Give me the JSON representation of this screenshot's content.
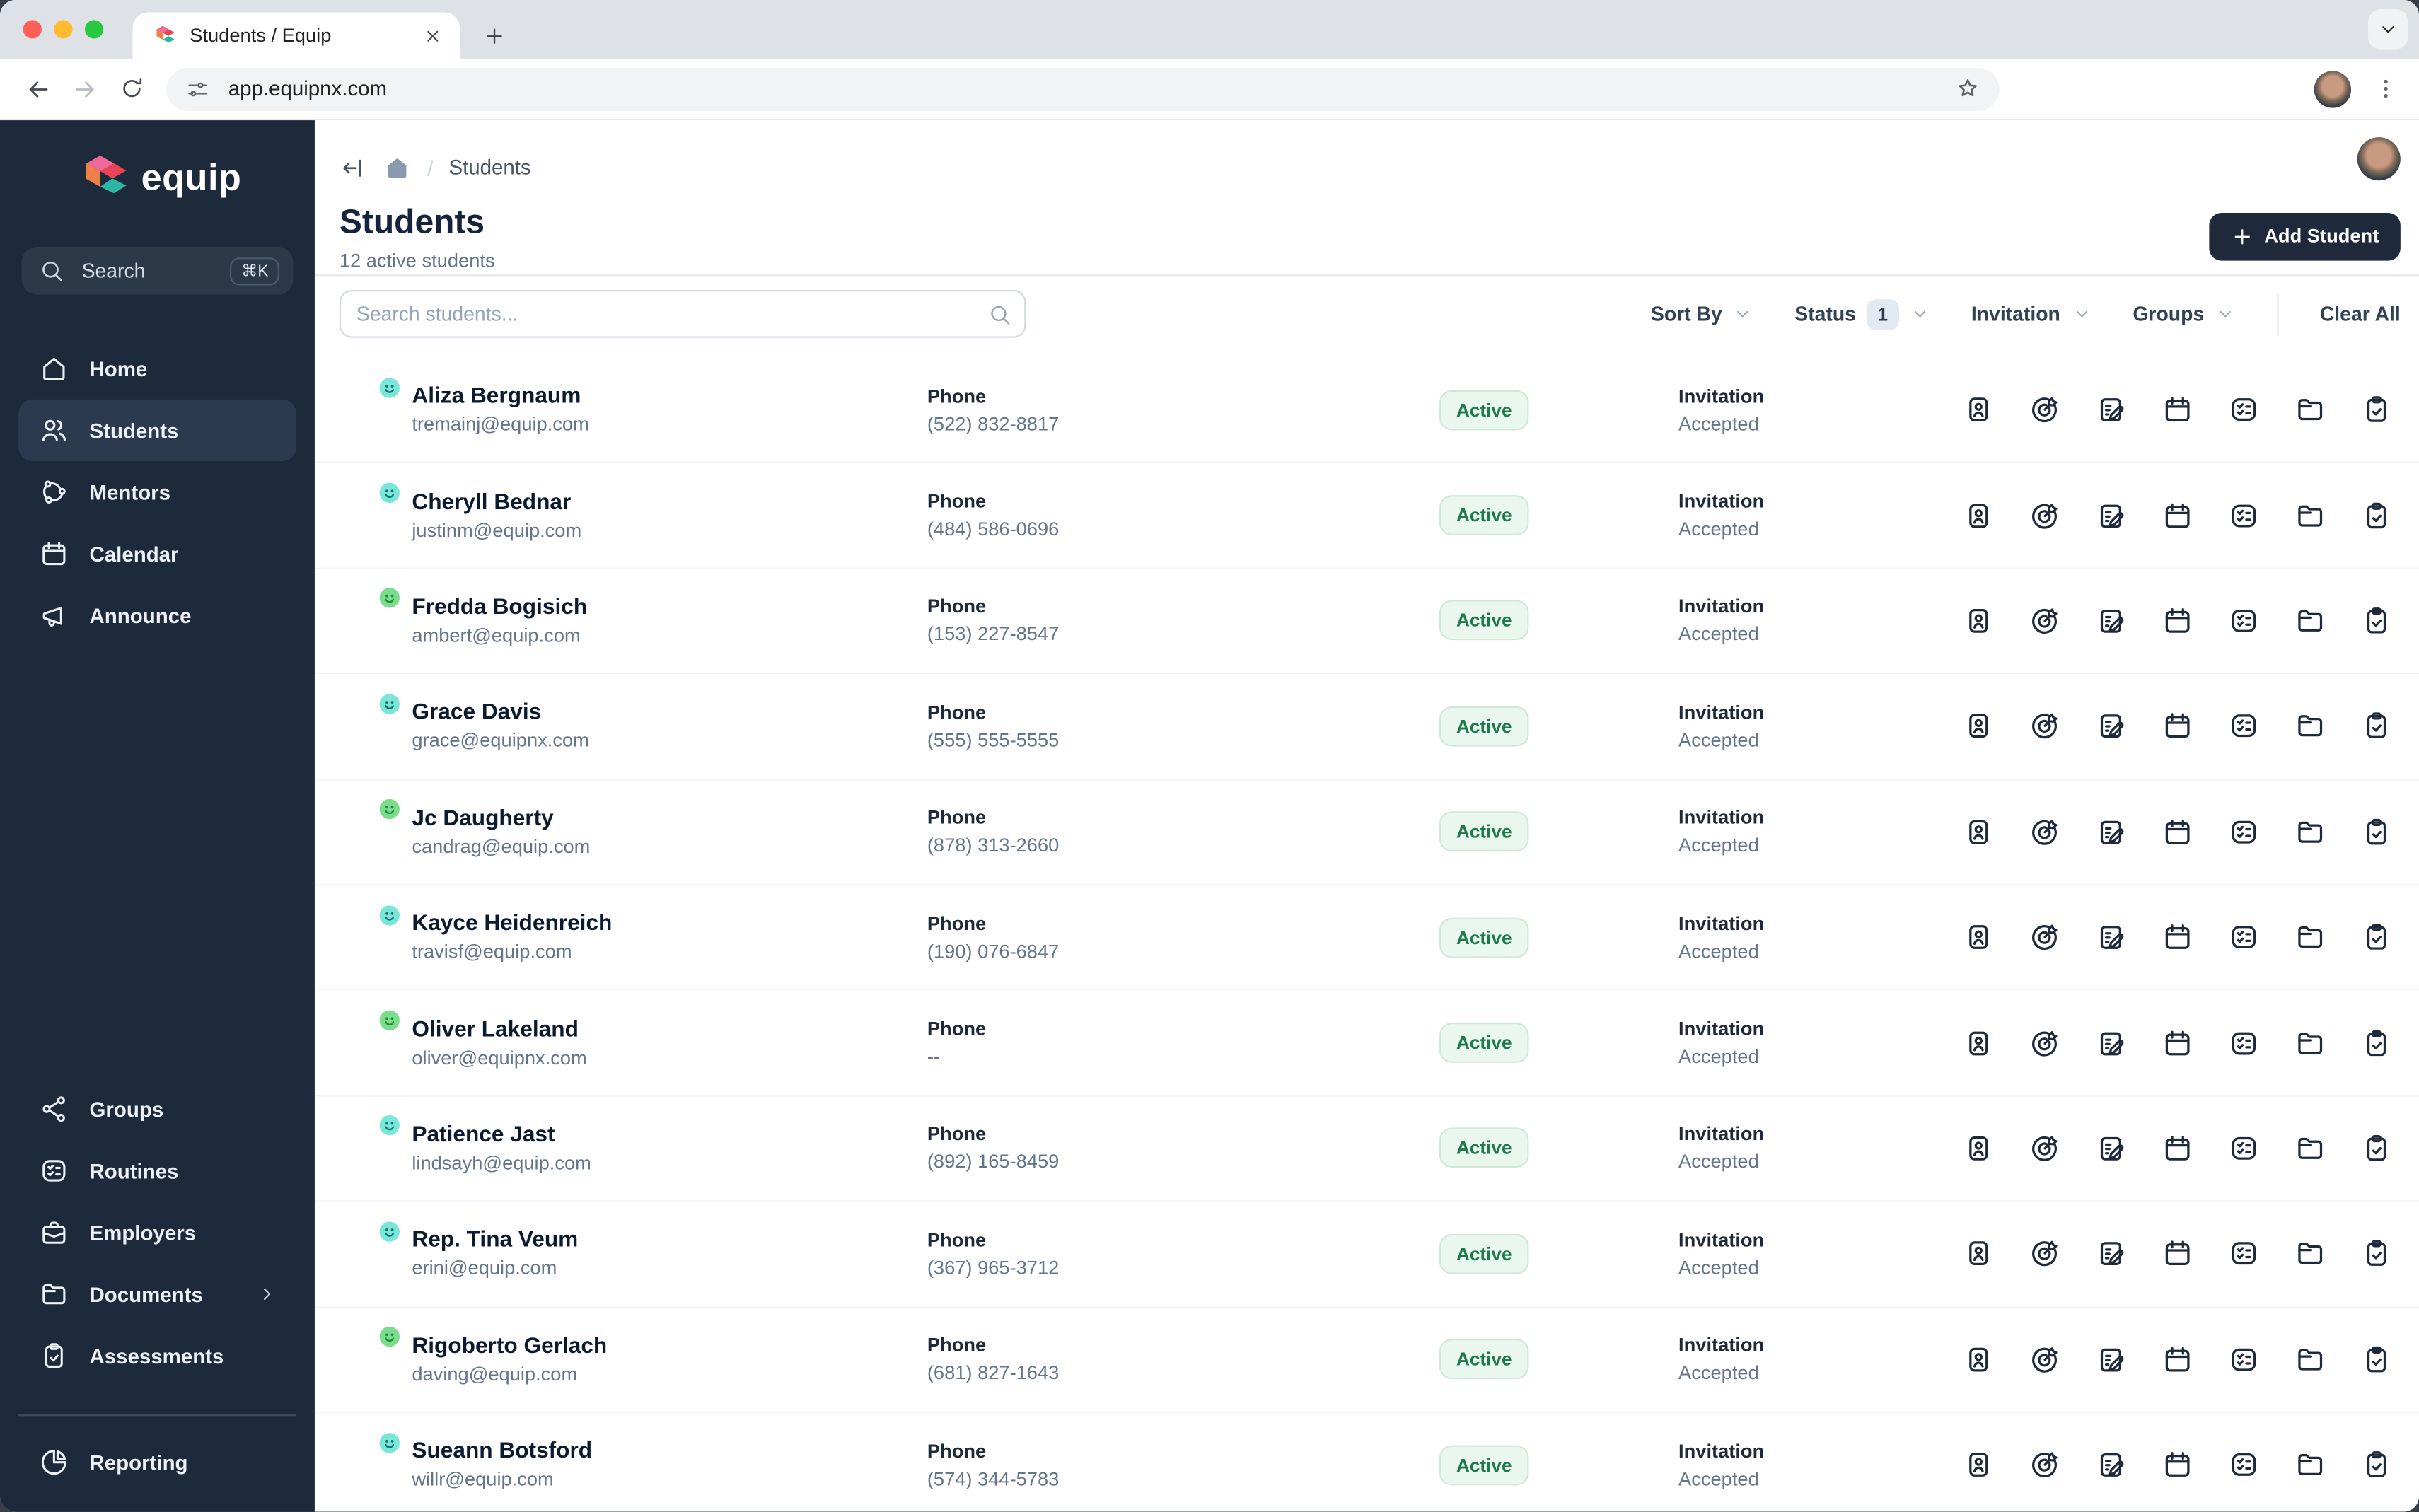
{
  "browser": {
    "tab_title": "Students / Equip",
    "url": "app.equipnx.com"
  },
  "sidebar": {
    "brand": "equip",
    "search_label": "Search",
    "search_shortcut": "⌘K",
    "nav": [
      {
        "label": "Home",
        "active": false
      },
      {
        "label": "Students",
        "active": true
      },
      {
        "label": "Mentors",
        "active": false
      },
      {
        "label": "Calendar",
        "active": false
      },
      {
        "label": "Announce",
        "active": false
      }
    ],
    "bottom": [
      {
        "label": "Groups"
      },
      {
        "label": "Routines"
      },
      {
        "label": "Employers"
      },
      {
        "label": "Documents",
        "has_submenu": true
      },
      {
        "label": "Assessments"
      }
    ],
    "footer": [
      {
        "label": "Reporting"
      }
    ]
  },
  "page": {
    "breadcrumb_current": "Students",
    "title": "Students",
    "subtitle": "12 active students",
    "add_student": "Add Student",
    "search_placeholder": "Search students..."
  },
  "filters": {
    "sort_by": "Sort By",
    "status": "Status",
    "status_count": "1",
    "invitation": "Invitation",
    "groups": "Groups",
    "clear_all": "Clear All"
  },
  "table": {
    "phone_label": "Phone",
    "invitation_label": "Invitation",
    "action_icons": [
      "profile-card",
      "goals-target",
      "notes",
      "calendar",
      "routines",
      "documents-folder",
      "assessments-clipboard"
    ],
    "students": [
      {
        "name": "Aliza Bergnaum",
        "email": "tremainj@equip.com",
        "phone": "(522) 832-8817",
        "status": "Active",
        "invitation": "Accepted",
        "mood": "teal",
        "avatar": {
          "c1": "#d9b8ac",
          "c2": "#8d6e62"
        }
      },
      {
        "name": "Cheryll Bednar",
        "email": "justinm@equip.com",
        "phone": "(484) 586-0696",
        "status": "Active",
        "invitation": "Accepted",
        "mood": "teal",
        "avatar": {
          "c1": "#3f3f41",
          "c2": "#cfcdc8"
        }
      },
      {
        "name": "Fredda Bogisich",
        "email": "ambert@equip.com",
        "phone": "(153) 227-8547",
        "status": "Active",
        "invitation": "Accepted",
        "mood": "green",
        "avatar": {
          "c1": "#7a5542",
          "c2": "#2f241e"
        }
      },
      {
        "name": "Grace Davis",
        "email": "grace@equipnx.com",
        "phone": "(555) 555-5555",
        "status": "Active",
        "invitation": "Accepted",
        "mood": "teal",
        "avatar": {
          "c1": "#c08a6c",
          "c2": "#6f4f3d"
        }
      },
      {
        "name": "Jc Daugherty",
        "email": "candrag@equip.com",
        "phone": "(878) 313-2660",
        "status": "Active",
        "invitation": "Accepted",
        "mood": "green",
        "avatar": {
          "c1": "#9a7a62",
          "c2": "#44503a"
        }
      },
      {
        "name": "Kayce Heidenreich",
        "email": "travisf@equip.com",
        "phone": "(190) 076-6847",
        "status": "Active",
        "invitation": "Accepted",
        "mood": "teal",
        "avatar": {
          "c1": "#d8b694",
          "c2": "#9aa4ac"
        }
      },
      {
        "name": "Oliver Lakeland",
        "email": "oliver@equipnx.com",
        "phone": "--",
        "status": "Active",
        "invitation": "Accepted",
        "mood": "green",
        "avatar": {
          "c1": "#b0a79c",
          "c2": "#5f6a72"
        }
      },
      {
        "name": "Patience Jast",
        "email": "lindsayh@equip.com",
        "phone": "(892) 165-8459",
        "status": "Active",
        "invitation": "Accepted",
        "mood": "teal",
        "avatar": {
          "c1": "#b98a68",
          "c2": "#5f4636"
        }
      },
      {
        "name": "Rep. Tina Veum",
        "email": "erini@equip.com",
        "phone": "(367) 965-3712",
        "status": "Active",
        "invitation": "Accepted",
        "mood": "teal",
        "avatar": {
          "c1": "#c49a7a",
          "c2": "#3e2f26"
        }
      },
      {
        "name": "Rigoberto Gerlach",
        "email": "daving@equip.com",
        "phone": "(681) 827-1643",
        "status": "Active",
        "invitation": "Accepted",
        "mood": "green",
        "avatar": {
          "c1": "#8f8f8f",
          "c2": "#2e2e2e"
        }
      },
      {
        "name": "Sueann Botsford",
        "email": "willr@equip.com",
        "phone": "(574) 344-5783",
        "status": "Active",
        "invitation": "Accepted",
        "mood": "teal",
        "avatar": {
          "c1": "#c9a98c",
          "c2": "#66705a"
        }
      }
    ]
  },
  "colors": {
    "sidebar_bg": "#1c2a3c",
    "sidebar_active_bg": "#2c3a50",
    "accent_navy": "#1e293b",
    "active_badge_bg": "#eaf7ef",
    "active_badge_text": "#1e7a4c",
    "mood_teal": {
      "bg": "#79e6d9",
      "face": "#0e7568"
    },
    "mood_green": {
      "bg": "#7bdd8c",
      "face": "#1f8a3b"
    },
    "traffic_lights": [
      "#ff5f57",
      "#febc2e",
      "#28c840"
    ],
    "logo": [
      "#ef6a9b",
      "#e84356",
      "#ef7f46",
      "#2eb5a4"
    ]
  }
}
